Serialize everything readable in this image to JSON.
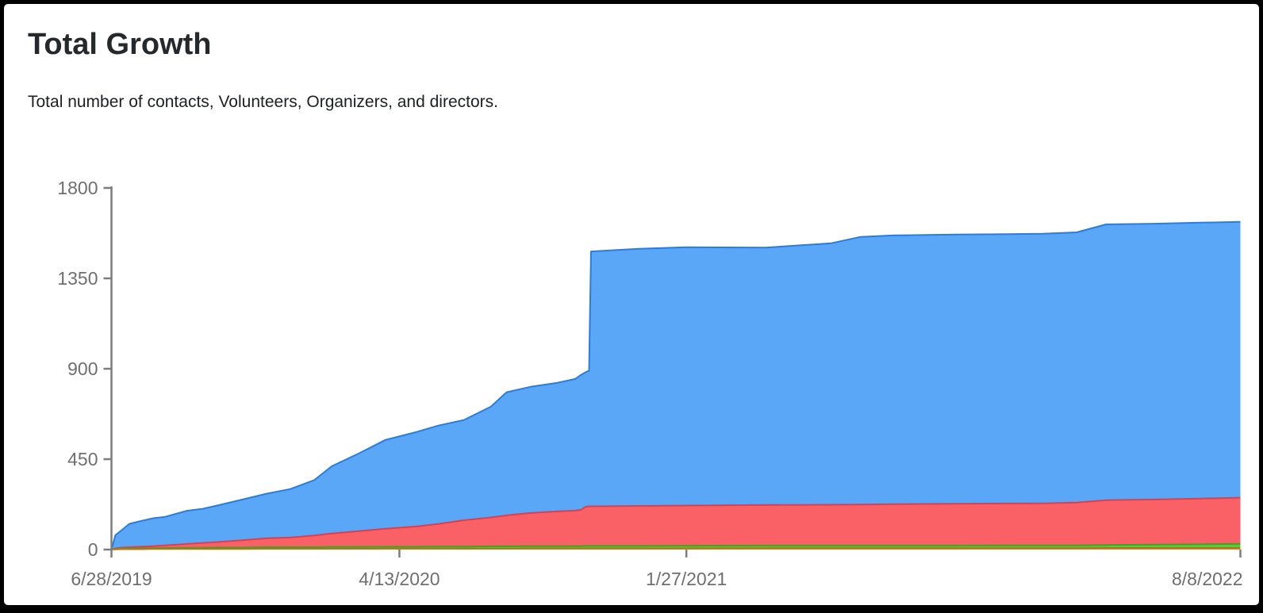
{
  "title": "Total Growth",
  "subtitle": "Total number of contacts, Volunteers, Organizers, and directors.",
  "colors": {
    "background": "#ffffff",
    "frame": "#000000",
    "axis": "#7d7d7d",
    "tick_label": "#6f6f6f",
    "title_text": "#25292c",
    "subtitle_text": "#1c2023"
  },
  "chart_data": {
    "type": "area",
    "stacked": true,
    "title": "Total Growth",
    "subtitle": "Total number of contacts, Volunteers, Organizers, and directors.",
    "legend": "none",
    "grid": false,
    "x_axis": {
      "unit": "date",
      "start_date": "6/28/2019",
      "end_date": "8/8/2022",
      "range_days": [
        0,
        1137
      ],
      "ticks": [
        {
          "label": "6/28/2019",
          "day": 0
        },
        {
          "label": "4/13/2020",
          "day": 290
        },
        {
          "label": "1/27/2021",
          "day": 579
        },
        {
          "label": "8/8/2022",
          "day": 1137
        }
      ]
    },
    "y_axis": {
      "range": [
        0,
        1800
      ],
      "ticks": [
        0,
        450,
        900,
        1350,
        1800
      ]
    },
    "days": [
      0,
      4,
      10,
      18,
      28,
      42,
      54,
      76,
      92,
      108,
      132,
      156,
      180,
      204,
      222,
      249,
      276,
      307,
      329,
      355,
      382,
      398,
      422,
      449,
      467,
      473,
      478,
      481,
      483,
      531,
      579,
      659,
      725,
      754,
      789,
      850,
      938,
      972,
      1002,
      1050,
      1096,
      1137
    ],
    "series": [
      {
        "name": "directors",
        "color": "#dd8e33",
        "edge": "#b8731d",
        "values": [
          0,
          1,
          2,
          2,
          2,
          3,
          3,
          3,
          3,
          3,
          3,
          4,
          4,
          4,
          4,
          4,
          5,
          5,
          5,
          5,
          5,
          5,
          6,
          6,
          6,
          6,
          6,
          6,
          6,
          6,
          6,
          7,
          7,
          7,
          7,
          7,
          7,
          7,
          8,
          8,
          8,
          8
        ]
      },
      {
        "name": "organizers",
        "color": "#5fc83a",
        "edge": "#3fa51e",
        "values": [
          0,
          2,
          3,
          4,
          4,
          4,
          5,
          6,
          6,
          7,
          7,
          8,
          8,
          8,
          9,
          9,
          9,
          9,
          10,
          10,
          11,
          11,
          11,
          11,
          11,
          11,
          12,
          12,
          12,
          12,
          13,
          13,
          13,
          13,
          13,
          13,
          14,
          14,
          15,
          17,
          19,
          21
        ]
      },
      {
        "name": "volunteers",
        "color": "#fa6167",
        "edge": "#e03e48",
        "values": [
          0,
          3,
          5,
          6,
          8,
          10,
          13,
          19,
          24,
          28,
          36,
          44,
          48,
          58,
          67,
          79,
          90,
          101,
          112,
          131,
          144,
          154,
          165,
          173,
          177,
          181,
          196,
          197,
          197,
          199,
          200,
          202,
          203,
          204,
          206,
          208,
          209,
          213,
          223,
          224,
          227,
          229
        ]
      },
      {
        "name": "contacts",
        "color": "#5aa6f7",
        "edge": "#2a7ce0",
        "values": [
          0,
          66,
          85,
          116,
          126,
          139,
          142,
          165,
          170,
          183,
          203,
          222,
          241,
          275,
          335,
          386,
          442,
          470,
          490,
          499,
          551,
          613,
          628,
          640,
          655,
          672,
          670,
          675,
          1269,
          1280,
          1286,
          1281,
          1302,
          1332,
          1338,
          1340,
          1342,
          1345,
          1373,
          1373,
          1373,
          1373
        ]
      }
    ],
    "final_totals": {
      "contacts": 1373,
      "volunteers": 229,
      "organizers": 21,
      "directors": 8,
      "total": 1631
    }
  }
}
